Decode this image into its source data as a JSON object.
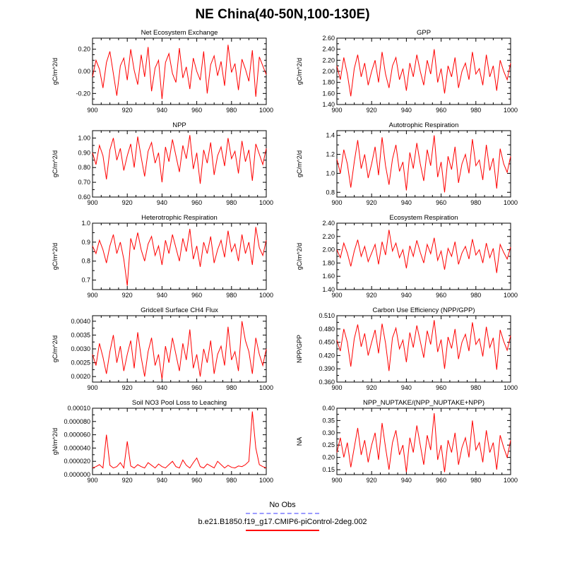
{
  "title": "NE China(40-50N,100-130E)",
  "line_color": "#ff0000",
  "x_axis": {
    "min": 900,
    "max": 1000,
    "ticks": [
      900,
      920,
      940,
      960,
      980,
      1000
    ],
    "minor_step": 5
  },
  "legend": {
    "no_obs": "No Obs",
    "no_obs_color": "#9b9bff",
    "case": "b.e21.B1850.f19_g17.CMIP6-piControl-2deg.002",
    "case_color": "#ff0000"
  },
  "chart_data": [
    {
      "type": "line",
      "title": "Net Ecosystem Exchange",
      "ylabel": "gC/m^2/d",
      "ylim": [
        -0.3,
        0.3
      ],
      "yticks": [
        -0.2,
        0.0,
        0.2
      ],
      "ytick_labels": [
        "-0.20",
        "0.00",
        "0.20"
      ],
      "yminor": 0.05,
      "x_start": 900,
      "x_step": 2,
      "values": [
        -0.05,
        0.1,
        0.02,
        -0.15,
        0.08,
        0.18,
        -0.02,
        -0.22,
        0.05,
        0.12,
        -0.08,
        0.2,
        0.01,
        -0.12,
        0.15,
        -0.05,
        0.22,
        -0.18,
        0.03,
        0.1,
        -0.25,
        0.08,
        0.16,
        -0.02,
        -0.1,
        0.21,
        -0.06,
        0.04,
        -0.16,
        0.12,
        0.0,
        -0.08,
        0.18,
        -0.2,
        0.06,
        0.14,
        -0.04,
        0.09,
        -0.13,
        0.24,
        -0.01,
        0.07,
        -0.17,
        0.11,
        0.02,
        -0.09,
        0.19,
        -0.23,
        0.13,
        0.05,
        -0.03
      ]
    },
    {
      "type": "line",
      "title": "GPP",
      "ylabel": "gC/m^2/d",
      "ylim": [
        1.4,
        2.6
      ],
      "yticks": [
        1.4,
        1.6,
        1.8,
        2.0,
        2.2,
        2.4,
        2.6
      ],
      "ytick_labels": [
        "1.40",
        "1.60",
        "1.80",
        "2.00",
        "2.20",
        "2.40",
        "2.60"
      ],
      "yminor": 0.1,
      "x_start": 900,
      "x_step": 2,
      "values": [
        2.1,
        1.85,
        2.25,
        1.95,
        1.55,
        2.05,
        2.3,
        1.9,
        2.15,
        1.75,
        2.0,
        2.2,
        1.8,
        2.35,
        1.95,
        1.7,
        2.1,
        2.25,
        1.85,
        2.05,
        1.65,
        2.15,
        1.9,
        2.3,
        2.0,
        1.75,
        2.2,
        1.95,
        2.4,
        1.8,
        2.05,
        1.6,
        2.1,
        1.9,
        2.25,
        1.7,
        2.0,
        2.15,
        1.85,
        2.35,
        1.95,
        2.05,
        1.75,
        2.3,
        1.9,
        2.1,
        1.65,
        2.2,
        2.0,
        1.85,
        2.15
      ]
    },
    {
      "type": "line",
      "title": "NPP",
      "ylabel": "gC/m^2/d",
      "ylim": [
        0.6,
        1.05
      ],
      "yticks": [
        0.6,
        0.7,
        0.8,
        0.9,
        1.0
      ],
      "ytick_labels": [
        "0.60",
        "0.70",
        "0.80",
        "0.90",
        "1.00"
      ],
      "yminor": 0.05,
      "x_start": 900,
      "x_step": 2,
      "values": [
        0.9,
        0.82,
        0.95,
        0.88,
        0.72,
        0.92,
        1.0,
        0.85,
        0.93,
        0.78,
        0.88,
        0.96,
        0.8,
        1.01,
        0.87,
        0.74,
        0.91,
        0.97,
        0.83,
        0.9,
        0.7,
        0.94,
        0.84,
        0.99,
        0.88,
        0.77,
        0.95,
        0.86,
        1.02,
        0.79,
        0.9,
        0.69,
        0.92,
        0.83,
        0.97,
        0.75,
        0.88,
        0.94,
        0.81,
        1.0,
        0.86,
        0.91,
        0.76,
        0.98,
        0.84,
        0.92,
        0.71,
        0.96,
        0.89,
        0.82,
        0.93
      ]
    },
    {
      "type": "line",
      "title": "Autotrophic Respiration",
      "ylabel": "gC/m^2/d",
      "ylim": [
        0.75,
        1.45
      ],
      "yticks": [
        0.8,
        1.0,
        1.2,
        1.4
      ],
      "ytick_labels": [
        "0.8",
        "1.0",
        "1.2",
        "1.4"
      ],
      "yminor": 0.1,
      "x_start": 900,
      "x_step": 2,
      "values": [
        1.15,
        1.0,
        1.25,
        1.1,
        0.85,
        1.12,
        1.35,
        1.05,
        1.2,
        0.95,
        1.1,
        1.28,
        0.98,
        1.38,
        1.08,
        0.88,
        1.15,
        1.3,
        1.02,
        1.12,
        0.82,
        1.22,
        1.05,
        1.32,
        1.1,
        0.92,
        1.25,
        1.08,
        1.4,
        0.96,
        1.12,
        0.8,
        1.18,
        1.04,
        1.28,
        0.9,
        1.1,
        1.2,
        1.0,
        1.36,
        1.08,
        1.14,
        0.93,
        1.3,
        1.03,
        1.16,
        0.84,
        1.26,
        1.1,
        1.01,
        1.18
      ]
    },
    {
      "type": "line",
      "title": "Heterotrophic Respiration",
      "ylabel": "gC/m^2/d",
      "ylim": [
        0.65,
        1.0
      ],
      "yticks": [
        0.7,
        0.8,
        0.9,
        1.0
      ],
      "ytick_labels": [
        "0.7",
        "0.8",
        "0.9",
        "1.0"
      ],
      "yminor": 0.05,
      "x_start": 900,
      "x_step": 2,
      "values": [
        0.88,
        0.84,
        0.91,
        0.86,
        0.79,
        0.88,
        0.94,
        0.84,
        0.9,
        0.81,
        0.67,
        0.92,
        0.86,
        0.95,
        0.86,
        0.8,
        0.89,
        0.93,
        0.83,
        0.88,
        0.78,
        0.91,
        0.84,
        0.94,
        0.87,
        0.8,
        0.92,
        0.85,
        0.97,
        0.81,
        0.88,
        0.77,
        0.9,
        0.84,
        0.93,
        0.79,
        0.86,
        0.91,
        0.82,
        0.96,
        0.85,
        0.89,
        0.8,
        0.94,
        0.84,
        0.9,
        0.78,
        0.98,
        0.87,
        0.83,
        0.91
      ]
    },
    {
      "type": "line",
      "title": "Ecosystem Respiration",
      "ylabel": "gC/m^2/d",
      "ylim": [
        1.4,
        2.4
      ],
      "yticks": [
        1.4,
        1.6,
        1.8,
        2.0,
        2.2,
        2.4
      ],
      "ytick_labels": [
        "1.40",
        "1.60",
        "1.80",
        "2.00",
        "2.20",
        "2.40"
      ],
      "yminor": 0.1,
      "x_start": 900,
      "x_step": 2,
      "values": [
        2.0,
        1.88,
        2.1,
        1.95,
        1.75,
        1.98,
        2.15,
        1.9,
        2.05,
        1.82,
        1.95,
        2.08,
        1.78,
        2.12,
        1.92,
        2.3,
        1.98,
        2.1,
        1.88,
        2.0,
        1.72,
        2.06,
        1.9,
        2.14,
        1.96,
        1.8,
        2.08,
        1.94,
        2.18,
        1.84,
        1.98,
        1.7,
        2.02,
        1.9,
        2.12,
        1.78,
        1.95,
        2.05,
        1.86,
        2.16,
        1.92,
        2.0,
        1.8,
        2.1,
        1.88,
        2.02,
        1.65,
        2.08,
        1.96,
        1.86,
        2.04
      ]
    },
    {
      "type": "line",
      "title": "Gridcell Surface CH4 Flux",
      "ylabel": "gC/m^2/d",
      "ylim": [
        0.0018,
        0.0042
      ],
      "yticks": [
        0.002,
        0.0025,
        0.003,
        0.0035,
        0.004
      ],
      "ytick_labels": [
        "0.0020",
        "0.0025",
        "0.0030",
        "0.0035",
        "0.0040"
      ],
      "yminor": 0.00025,
      "x_start": 900,
      "x_step": 2,
      "values": [
        0.0028,
        0.0024,
        0.0032,
        0.0027,
        0.0021,
        0.0029,
        0.0035,
        0.0025,
        0.0031,
        0.0022,
        0.0028,
        0.0033,
        0.0023,
        0.0036,
        0.0027,
        0.002,
        0.0029,
        0.0034,
        0.0024,
        0.0028,
        0.0019,
        0.0031,
        0.0025,
        0.0034,
        0.0028,
        0.0022,
        0.0032,
        0.0026,
        0.0037,
        0.0023,
        0.0028,
        0.002,
        0.003,
        0.0025,
        0.0033,
        0.0021,
        0.0028,
        0.0031,
        0.0024,
        0.0038,
        0.0026,
        0.0029,
        0.0022,
        0.004,
        0.0033,
        0.0029,
        0.0021,
        0.0034,
        0.0028,
        0.0024,
        0.003
      ]
    },
    {
      "type": "line",
      "title": "Carbon Use Efficiency (NPP/GPP)",
      "ylabel": "NPP/GPP",
      "ylim": [
        0.36,
        0.51
      ],
      "yticks": [
        0.36,
        0.39,
        0.42,
        0.45,
        0.48,
        0.51
      ],
      "ytick_labels": [
        "0.360",
        "0.390",
        "0.420",
        "0.450",
        "0.480",
        "0.510"
      ],
      "yminor": 0.015,
      "x_start": 900,
      "x_step": 2,
      "values": [
        0.455,
        0.43,
        0.48,
        0.45,
        0.395,
        0.458,
        0.49,
        0.44,
        0.47,
        0.42,
        0.45,
        0.478,
        0.425,
        0.492,
        0.448,
        0.385,
        0.46,
        0.482,
        0.435,
        0.455,
        0.405,
        0.472,
        0.438,
        0.488,
        0.452,
        0.415,
        0.476,
        0.445,
        0.5,
        0.428,
        0.456,
        0.39,
        0.462,
        0.436,
        0.48,
        0.412,
        0.45,
        0.468,
        0.43,
        0.495,
        0.445,
        0.458,
        0.418,
        0.485,
        0.438,
        0.46,
        0.388,
        0.478,
        0.452,
        0.432,
        0.465
      ]
    },
    {
      "type": "line",
      "title": "Soil NO3 Pool Loss to Leaching",
      "ylabel": "gN/m^2/d",
      "ylim": [
        0.0,
        0.0001
      ],
      "yticks": [
        0.0,
        2e-05,
        4e-05,
        6e-05,
        8e-05,
        0.0001
      ],
      "ytick_labels": [
        "0.000000",
        "0.000020",
        "0.000040",
        "0.000060",
        "0.000080",
        "0.00010"
      ],
      "yminor": 1e-05,
      "x_start": 900,
      "x_step": 2,
      "values": [
        1e-05,
        1.2e-05,
        1.5e-05,
        1e-05,
        6e-05,
        1.4e-05,
        1e-05,
        1.2e-05,
        1.8e-05,
        1e-05,
        5e-05,
        1.3e-05,
        1e-05,
        1.5e-05,
        1.2e-05,
        1e-05,
        1.8e-05,
        1.4e-05,
        1e-05,
        1.6e-05,
        1.2e-05,
        1e-05,
        1.5e-05,
        2e-05,
        1.2e-05,
        1e-05,
        2.2e-05,
        1.4e-05,
        1e-05,
        1.8e-05,
        2.5e-05,
        1.2e-05,
        1e-05,
        1.6e-05,
        1.3e-05,
        1e-05,
        2e-05,
        1.5e-05,
        1e-05,
        1.4e-05,
        1.1e-05,
        1e-05,
        1.3e-05,
        1.2e-05,
        1.5e-05,
        2e-05,
        9.5e-05,
        4e-05,
        1.5e-05,
        1.2e-05,
        1e-05
      ]
    },
    {
      "type": "line",
      "title": "NPP_NUPTAKE/(NPP_NUPTAKE+NPP)",
      "ylabel": "NA",
      "ylim": [
        0.13,
        0.4
      ],
      "yticks": [
        0.15,
        0.2,
        0.25,
        0.3,
        0.35,
        0.4
      ],
      "ytick_labels": [
        "0.15",
        "0.20",
        "0.25",
        "0.30",
        "0.35",
        "0.40"
      ],
      "yminor": 0.025,
      "x_start": 900,
      "x_step": 2,
      "values": [
        0.22,
        0.28,
        0.2,
        0.26,
        0.16,
        0.24,
        0.32,
        0.21,
        0.27,
        0.18,
        0.25,
        0.3,
        0.19,
        0.34,
        0.24,
        0.15,
        0.26,
        0.31,
        0.21,
        0.25,
        0.14,
        0.28,
        0.22,
        0.33,
        0.25,
        0.17,
        0.29,
        0.23,
        0.38,
        0.19,
        0.25,
        0.14,
        0.27,
        0.22,
        0.3,
        0.17,
        0.24,
        0.28,
        0.2,
        0.35,
        0.23,
        0.26,
        0.18,
        0.31,
        0.22,
        0.26,
        0.15,
        0.29,
        0.24,
        0.2,
        0.27
      ]
    }
  ]
}
